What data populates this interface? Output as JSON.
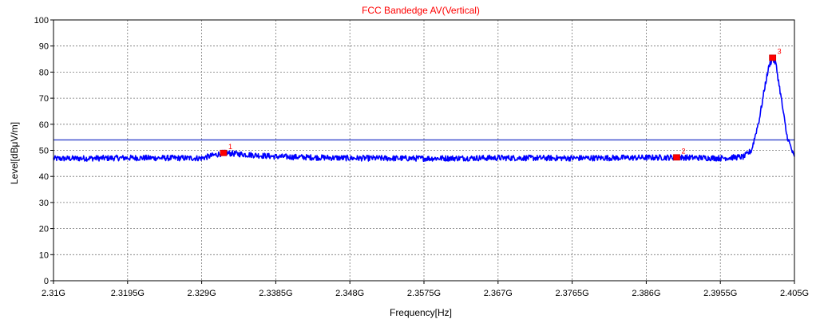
{
  "colors": {
    "background": "#ffffff",
    "plot_frame": "#000000",
    "grid": "#777777",
    "trace": "#0000ff",
    "limit_line": "#3344cc",
    "title": "#ff0000",
    "marker": "#ff0000",
    "text": "#000000"
  },
  "chart_data": {
    "type": "line",
    "title": "FCC Bandedge AV(Vertical)",
    "xlabel": "Frequency[Hz]",
    "ylabel": "Level[dBμV/m]",
    "xlim": [
      2.31,
      2.405
    ],
    "ylim": [
      0,
      100
    ],
    "x_unit": "GHz",
    "xticks": [
      2.31,
      2.3195,
      2.329,
      2.3385,
      2.348,
      2.3575,
      2.367,
      2.3765,
      2.386,
      2.3955,
      2.405
    ],
    "xtick_labels": [
      "2.31G",
      "2.3195G",
      "2.329G",
      "2.3385G",
      "2.348G",
      "2.3575G",
      "2.367G",
      "2.3765G",
      "2.386G",
      "2.3955G",
      "2.405G"
    ],
    "yticks": [
      0,
      10,
      20,
      30,
      40,
      50,
      60,
      70,
      80,
      90,
      100
    ],
    "ytick_labels": [
      "0",
      "10",
      "20",
      "30",
      "40",
      "50",
      "60",
      "70",
      "80",
      "90",
      "100"
    ],
    "grid": true,
    "limit_line": {
      "level": 54
    },
    "series": [
      {
        "x": [
          2.31,
          2.3195,
          2.329,
          2.3318,
          2.3385,
          2.348,
          2.3575,
          2.367,
          2.3765,
          2.386,
          2.3899,
          2.3955,
          2.3985,
          2.3995,
          2.4005,
          2.4013,
          2.4018,
          2.4022,
          2.4026,
          2.4032,
          2.404,
          2.405
        ],
        "y": [
          46.8,
          47.1,
          47.0,
          49.0,
          47.6,
          47.0,
          46.9,
          47.1,
          47.0,
          47.2,
          47.3,
          47.0,
          47.5,
          50.0,
          62.0,
          76.0,
          83.0,
          85.0,
          83.5,
          72.0,
          56.0,
          47.0
        ]
      }
    ],
    "markers": [
      {
        "label": "1",
        "x": 2.3318,
        "y": 49.0
      },
      {
        "label": "2",
        "x": 2.3899,
        "y": 47.3
      },
      {
        "label": "3",
        "x": 2.4022,
        "y": 85.5
      }
    ]
  }
}
